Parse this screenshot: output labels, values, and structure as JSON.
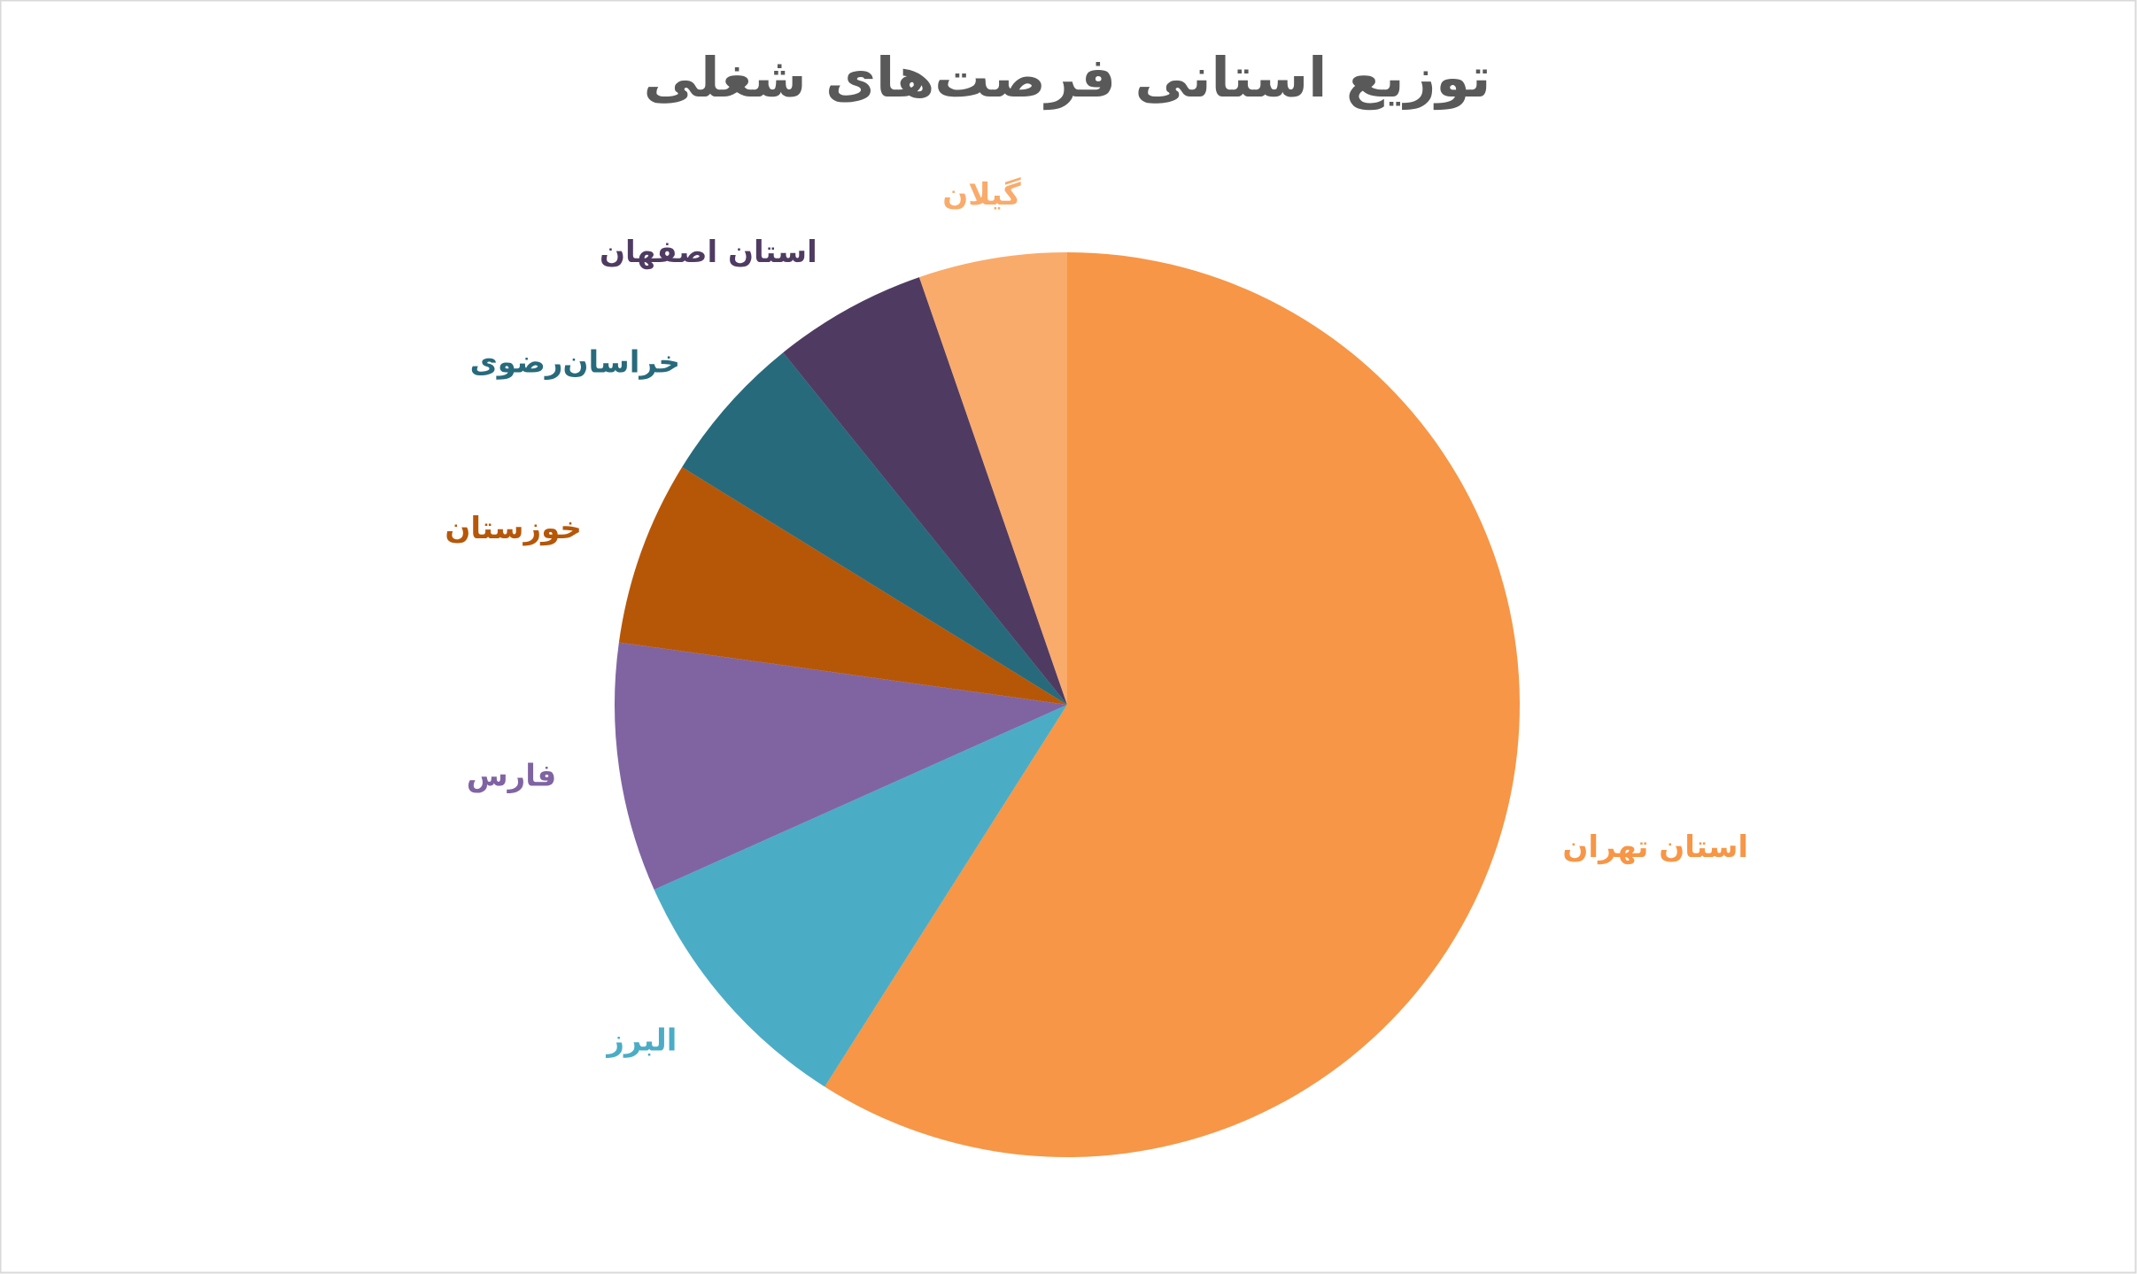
{
  "chart_data": {
    "type": "pie",
    "title": "توزیع استانی فرصت‌های شغلی",
    "categories": [
      "استان تهران",
      "البرز",
      "فارس",
      "خوزستان",
      "خراسان‌رضوی",
      "استان اصفهان",
      "گیلان"
    ],
    "values": [
      59,
      9.3,
      8.9,
      6.6,
      5.4,
      5.5,
      5.3
    ],
    "colors": [
      "#f79646",
      "#4bacc6",
      "#8064a2",
      "#b65708",
      "#276a7c",
      "#4f3b62",
      "#f9ab6b"
    ]
  }
}
